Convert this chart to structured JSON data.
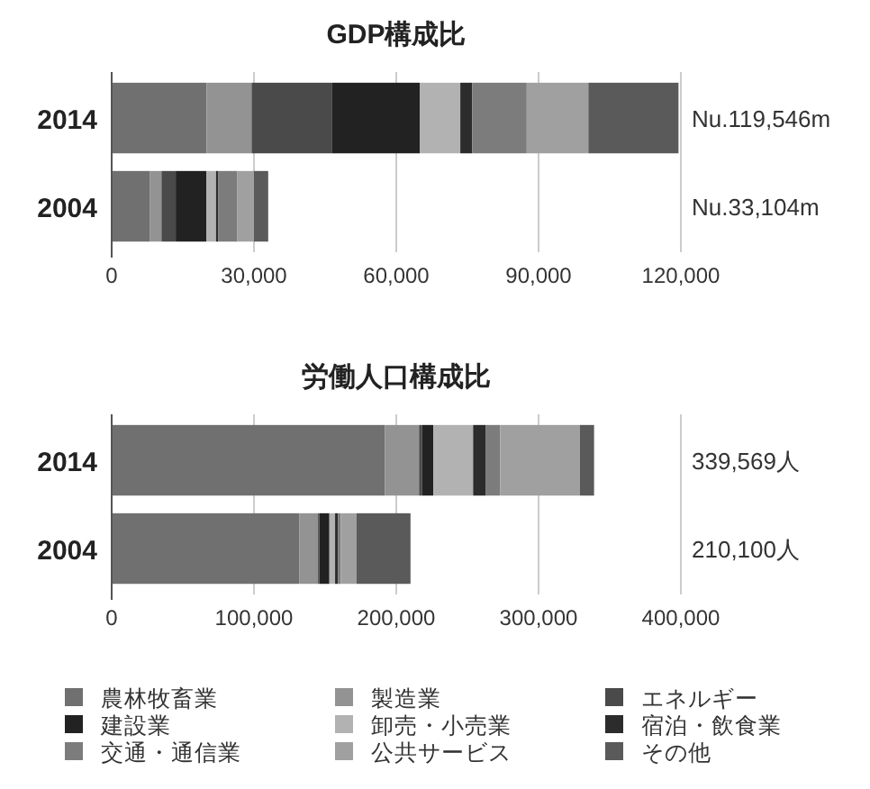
{
  "chart_data": [
    {
      "type": "bar",
      "title": "GDP構成比",
      "orientation": "horizontal",
      "stacked": true,
      "categories": [
        "2014",
        "2004"
      ],
      "xlim": [
        0,
        120000
      ],
      "xticks": [
        {
          "value": 0,
          "label": "0"
        },
        {
          "value": 30000,
          "label": "30,000"
        },
        {
          "value": 60000,
          "label": "60,000"
        },
        {
          "value": 90000,
          "label": "90,000"
        },
        {
          "value": 120000,
          "label": "120,000"
        }
      ],
      "grid": "x",
      "annotations": [
        "Nu.119,546m",
        "Nu.33,104m"
      ],
      "series": [
        {
          "color": "#707070",
          "values": [
            20000,
            8000
          ]
        },
        {
          "color": "#939393",
          "values": [
            9500,
            2500
          ]
        },
        {
          "color": "#4a4a4a",
          "values": [
            17000,
            3000
          ]
        },
        {
          "color": "#222222",
          "values": [
            18500,
            6500
          ]
        },
        {
          "color": "#b2b2b2",
          "values": [
            8500,
            2000
          ]
        },
        {
          "color": "#2c2c2c",
          "values": [
            2500,
            500
          ]
        },
        {
          "color": "#7c7c7c",
          "values": [
            11500,
            4000
          ]
        },
        {
          "color": "#a0a0a0",
          "values": [
            13000,
            3500
          ]
        },
        {
          "color": "#5a5a5a",
          "values": [
            19000,
            3000
          ]
        }
      ]
    },
    {
      "type": "bar",
      "title": "労働人口構成比",
      "orientation": "horizontal",
      "stacked": true,
      "categories": [
        "2014",
        "2004"
      ],
      "xlim": [
        0,
        400000
      ],
      "xticks": [
        {
          "value": 0,
          "label": "0"
        },
        {
          "value": 100000,
          "label": "100,000"
        },
        {
          "value": 200000,
          "label": "200,000"
        },
        {
          "value": 300000,
          "label": "300,000"
        },
        {
          "value": 400000,
          "label": "400,000"
        }
      ],
      "grid": "x",
      "annotations": [
        "339,569人",
        "210,100人"
      ],
      "legend": "bottom",
      "series": [
        {
          "name": "農林牧畜業",
          "color": "#707070",
          "values": [
            192000,
            132000
          ]
        },
        {
          "name": "製造業",
          "color": "#939393",
          "values": [
            24000,
            13000
          ]
        },
        {
          "name": "エネルギー",
          "color": "#4a4a4a",
          "values": [
            2000,
            1000
          ]
        },
        {
          "name": "建設業",
          "color": "#222222",
          "values": [
            8000,
            7000
          ]
        },
        {
          "name": "卸売・小売業",
          "color": "#b2b2b2",
          "values": [
            28000,
            4000
          ]
        },
        {
          "name": "宿泊・飲食業",
          "color": "#2c2c2c",
          "values": [
            9000,
            2000
          ]
        },
        {
          "name": "交通・通信業",
          "color": "#7c7c7c",
          "values": [
            10000,
            2000
          ]
        },
        {
          "name": "公共サービス",
          "color": "#a0a0a0",
          "values": [
            56000,
            11000
          ]
        },
        {
          "name": "その他",
          "color": "#5a5a5a",
          "values": [
            10000,
            38000
          ]
        }
      ]
    }
  ]
}
